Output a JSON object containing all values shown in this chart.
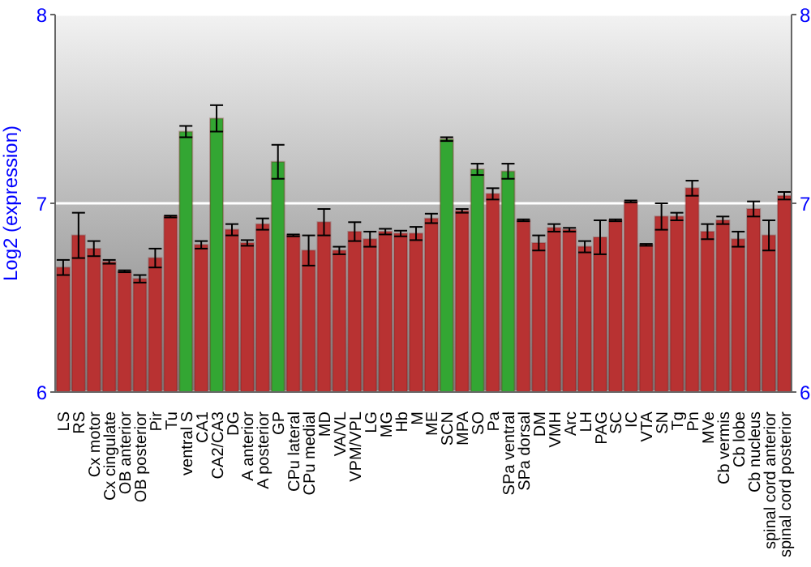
{
  "chart_data": {
    "type": "bar",
    "ylabel": "Log2 (expression)",
    "categories": [
      "LS",
      "RS",
      "Cx motor",
      "Cx cingulate",
      "OB anterior",
      "OB posterior",
      "Pir",
      "Tu",
      "ventral S",
      "CA1",
      "CA2/CA3",
      "DG",
      "A anterior",
      "A posterior",
      "GP",
      "CPu lateral",
      "CPu medial",
      "MD",
      "VA/VL",
      "VPM/VPL",
      "LG",
      "MG",
      "Hb",
      "M",
      "ME",
      "SCN",
      "MPA",
      "SO",
      "Pa",
      "SPa ventral",
      "SPa dorsal",
      "DM",
      "VMH",
      "Arc",
      "LH",
      "PAG",
      "SC",
      "IC",
      "VTA",
      "SN",
      "Tg",
      "Pn",
      "MVe",
      "Cb vermis",
      "Cb lobe",
      "Cb nucleus",
      "spinal cord anterior",
      "spinal cord posterior"
    ],
    "values": [
      6.66,
      6.83,
      6.76,
      6.69,
      6.64,
      6.6,
      6.71,
      6.93,
      7.38,
      6.78,
      7.45,
      6.86,
      6.79,
      6.89,
      7.22,
      6.83,
      6.75,
      6.9,
      6.75,
      6.85,
      6.81,
      6.85,
      6.84,
      6.84,
      6.92,
      7.34,
      6.96,
      7.18,
      7.05,
      7.17,
      6.91,
      6.79,
      6.87,
      6.86,
      6.77,
      6.82,
      6.91,
      7.01,
      6.78,
      6.93,
      6.93,
      7.08,
      6.85,
      6.91,
      6.81,
      6.97,
      6.83,
      7.04
    ],
    "errors": [
      0.04,
      0.12,
      0.04,
      0.01,
      0.005,
      0.02,
      0.05,
      0.005,
      0.03,
      0.02,
      0.07,
      0.03,
      0.015,
      0.03,
      0.09,
      0.005,
      0.08,
      0.07,
      0.02,
      0.05,
      0.04,
      0.015,
      0.015,
      0.035,
      0.025,
      0.01,
      0.01,
      0.03,
      0.03,
      0.04,
      0.005,
      0.04,
      0.02,
      0.01,
      0.03,
      0.09,
      0.005,
      0.005,
      0.005,
      0.07,
      0.02,
      0.04,
      0.04,
      0.02,
      0.04,
      0.04,
      0.08,
      0.02
    ],
    "colors": [
      "#b83232",
      "#b83232",
      "#b83232",
      "#b83232",
      "#b83232",
      "#b83232",
      "#b83232",
      "#b83232",
      "#33a633",
      "#b83232",
      "#33a633",
      "#b83232",
      "#b83232",
      "#b83232",
      "#33a633",
      "#b83232",
      "#b83232",
      "#b83232",
      "#b83232",
      "#b83232",
      "#b83232",
      "#b83232",
      "#b83232",
      "#b83232",
      "#b83232",
      "#33a633",
      "#b83232",
      "#33a633",
      "#b83232",
      "#33a633",
      "#b83232",
      "#b83232",
      "#b83232",
      "#b83232",
      "#b83232",
      "#b83232",
      "#b83232",
      "#b83232",
      "#b83232",
      "#b83232",
      "#b83232",
      "#b83232",
      "#b83232",
      "#b83232",
      "#b83232",
      "#b83232",
      "#b83232",
      "#b83232"
    ],
    "ylim": [
      6,
      8
    ],
    "yticks": [
      6,
      7,
      8
    ],
    "y2lim": [
      6,
      8
    ],
    "y2ticks": [
      6,
      7,
      8
    ],
    "grid": "y",
    "legend": false
  }
}
